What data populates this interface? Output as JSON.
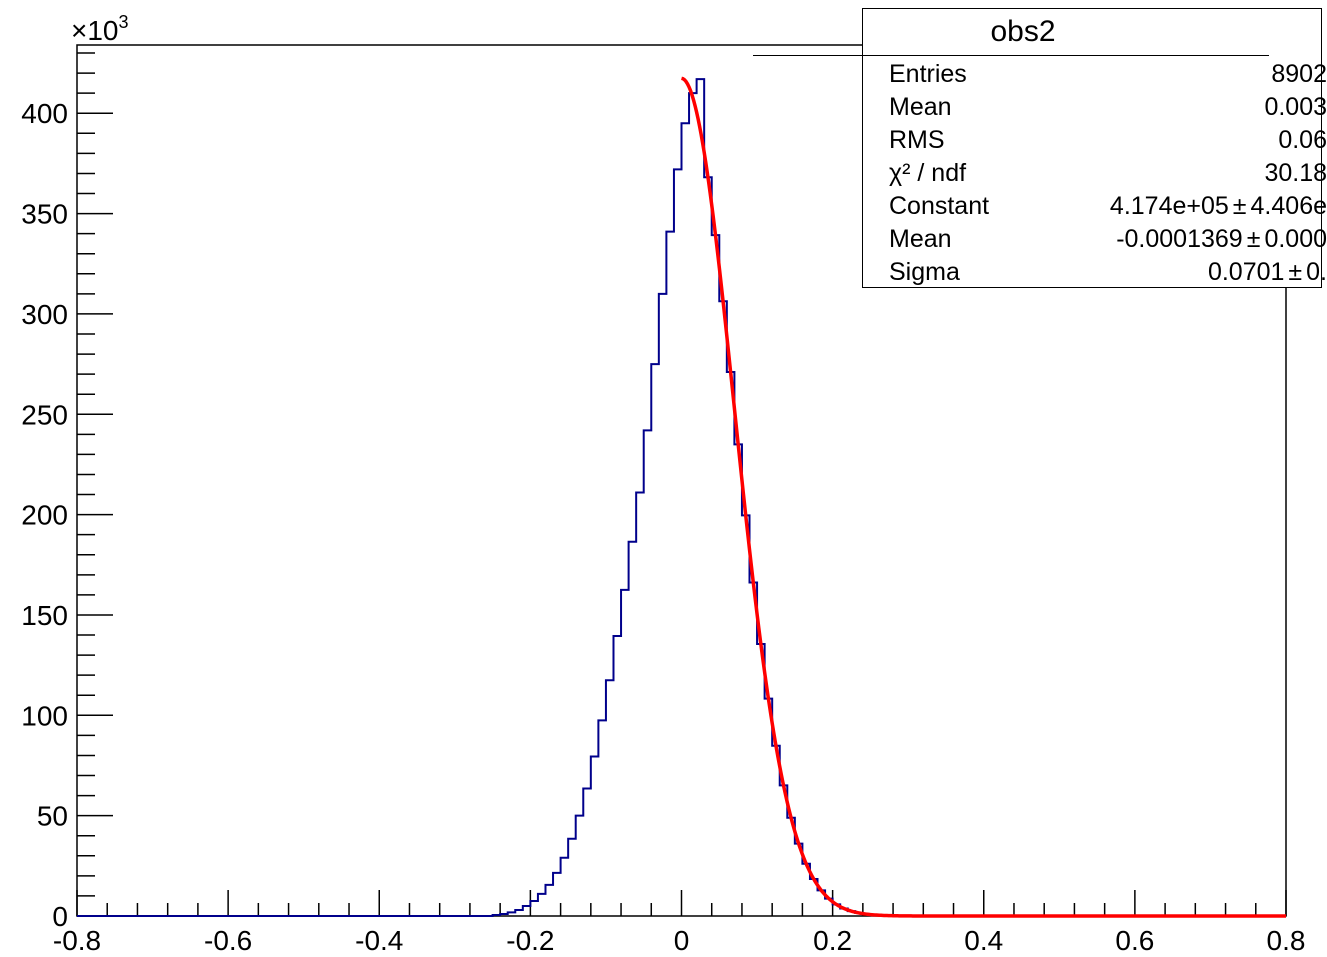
{
  "chart_data": {
    "type": "histogram",
    "title": "",
    "xlabel": "",
    "ylabel": "",
    "xlim": [
      -0.8,
      0.8
    ],
    "ylim": [
      0,
      434
    ],
    "y_multiplier_label": "×10",
    "y_multiplier_exp": "3",
    "x_ticks": [
      "-0.8",
      "-0.6",
      "-0.4",
      "-0.2",
      "0",
      "0.2",
      "0.4",
      "0.6",
      "0.8"
    ],
    "y_ticks": [
      "0",
      "50",
      "100",
      "150",
      "200",
      "250",
      "300",
      "350",
      "400"
    ],
    "histogram_color": "#00008b",
    "fit_color": "#ff0000",
    "histogram": {
      "description": "Gaussian-like distribution of obs2, bin width 0.01",
      "bin_width": 0.01,
      "counts_x1000": {
        "-0.25": 0.5,
        "-0.24": 1.0,
        "-0.23": 1.8,
        "-0.22": 3.0,
        "-0.21": 5.0,
        "-0.20": 7.5,
        "-0.19": 11.0,
        "-0.18": 15.5,
        "-0.17": 21.5,
        "-0.16": 29.0,
        "-0.15": 38.5,
        "-0.14": 50.0,
        "-0.13": 63.5,
        "-0.12": 79.5,
        "-0.11": 97.5,
        "-0.10": 117.5,
        "-0.09": 139.5,
        "-0.08": 162.5,
        "-0.07": 186.5,
        "-0.06": 211.0,
        "-0.05": 242.0,
        "-0.04": 275.0,
        "-0.03": 310.0,
        "-0.02": 341.0,
        "-0.01": 372.0,
        "0.00": 395.0,
        "0.01": 410.0,
        "0.02": 417.0
      }
    },
    "fit": {
      "function": "gaus",
      "constant": 417400,
      "mean": -0.0001369,
      "sigma": 0.0701,
      "x_range": [
        0.0,
        0.8
      ]
    }
  },
  "stats_box": {
    "title": "obs2",
    "rows": [
      {
        "label": "Entries",
        "value": "8902",
        "error": ""
      },
      {
        "label": "Mean",
        "value": "0.003",
        "error": ""
      },
      {
        "label": "RMS",
        "value": "0.06",
        "error": ""
      },
      {
        "label": "χ² / ndf",
        "value": "30.18",
        "error": ""
      },
      {
        "label": "Constant",
        "value": "4.174e+05",
        "error": "4.406e"
      },
      {
        "label": "Mean",
        "value": "-0.0001369",
        "error": "0.000"
      },
      {
        "label": "Sigma",
        "value": "0.0701",
        "error": "0."
      }
    ]
  }
}
